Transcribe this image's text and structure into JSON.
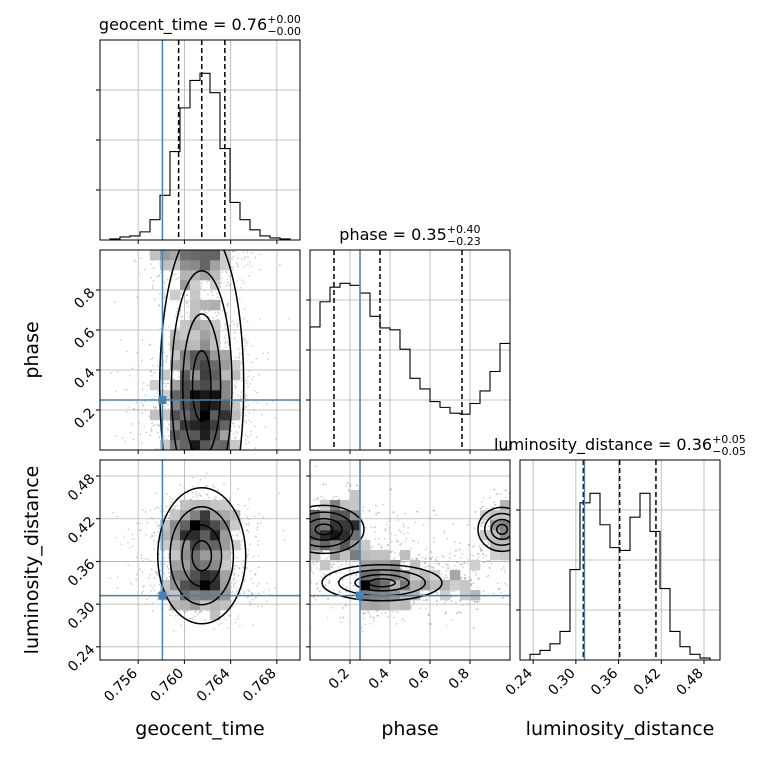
{
  "chart_data": {
    "type": "corner",
    "truth_color": "#4682b4",
    "truths": {
      "geocent_time": 0.7581,
      "phase": 0.25,
      "luminosity_distance": 0.312
    },
    "parameters": [
      {
        "id": "geocent_time",
        "axis_label": "geocent_time",
        "title_prefix": "geocent_time = ",
        "title_value": "0.76",
        "title_plus": "+0.00",
        "title_minus": "−0.00",
        "range": [
          0.7527,
          0.77
        ],
        "ticks": [
          "0.756",
          "0.760",
          "0.764",
          "0.768"
        ],
        "tick_values": [
          0.756,
          0.76,
          0.764,
          0.768
        ],
        "quantiles": [
          0.7595,
          0.7615,
          0.7635
        ],
        "hist_edges": [
          0.7527,
          0.77
        ],
        "hist_counts": [
          0,
          1,
          3,
          4,
          8,
          20,
          44,
          87,
          130,
          157,
          164,
          145,
          90,
          37,
          20,
          10,
          4,
          2,
          1,
          0
        ]
      },
      {
        "id": "phase",
        "axis_label": "phase",
        "title_prefix": "phase = ",
        "title_value": "0.35",
        "title_plus": "+0.40",
        "title_minus": "−0.23",
        "range": [
          0.0,
          1.0
        ],
        "ticks": [
          "0.2",
          "0.4",
          "0.6",
          "0.8"
        ],
        "tick_values": [
          0.2,
          0.4,
          0.6,
          0.8
        ],
        "quantiles": [
          0.12,
          0.35,
          0.76
        ],
        "hist_edges": [
          0.0,
          1.0
        ],
        "hist_counts": [
          127,
          153,
          168,
          172,
          170,
          162,
          138,
          126,
          124,
          104,
          74,
          63,
          50,
          44,
          38,
          37,
          48,
          61,
          81,
          110
        ]
      },
      {
        "id": "luminosity_distance",
        "axis_label": "luminosity_distance",
        "title_prefix": "luminosity_distance = ",
        "title_value": "0.36",
        "title_plus": "+0.05",
        "title_minus": "−0.05",
        "range": [
          0.2215,
          0.5025
        ],
        "ticks": [
          "0.24",
          "0.30",
          "0.36",
          "0.42",
          "0.48"
        ],
        "tick_values": [
          0.24,
          0.3,
          0.36,
          0.42,
          0.48
        ],
        "quantiles": [
          0.3105,
          0.3615,
          0.4125
        ],
        "hist_edges": [
          0.2215,
          0.5025
        ],
        "hist_counts": [
          0,
          6,
          10,
          17,
          30,
          95,
          165,
          175,
          142,
          118,
          115,
          150,
          175,
          135,
          75,
          30,
          14,
          6,
          2,
          0
        ]
      }
    ],
    "panels_2d": [
      {
        "x": "geocent_time",
        "y": "phase"
      },
      {
        "x": "geocent_time",
        "y": "luminosity_distance"
      },
      {
        "x": "phase",
        "y": "luminosity_distance"
      }
    ]
  }
}
